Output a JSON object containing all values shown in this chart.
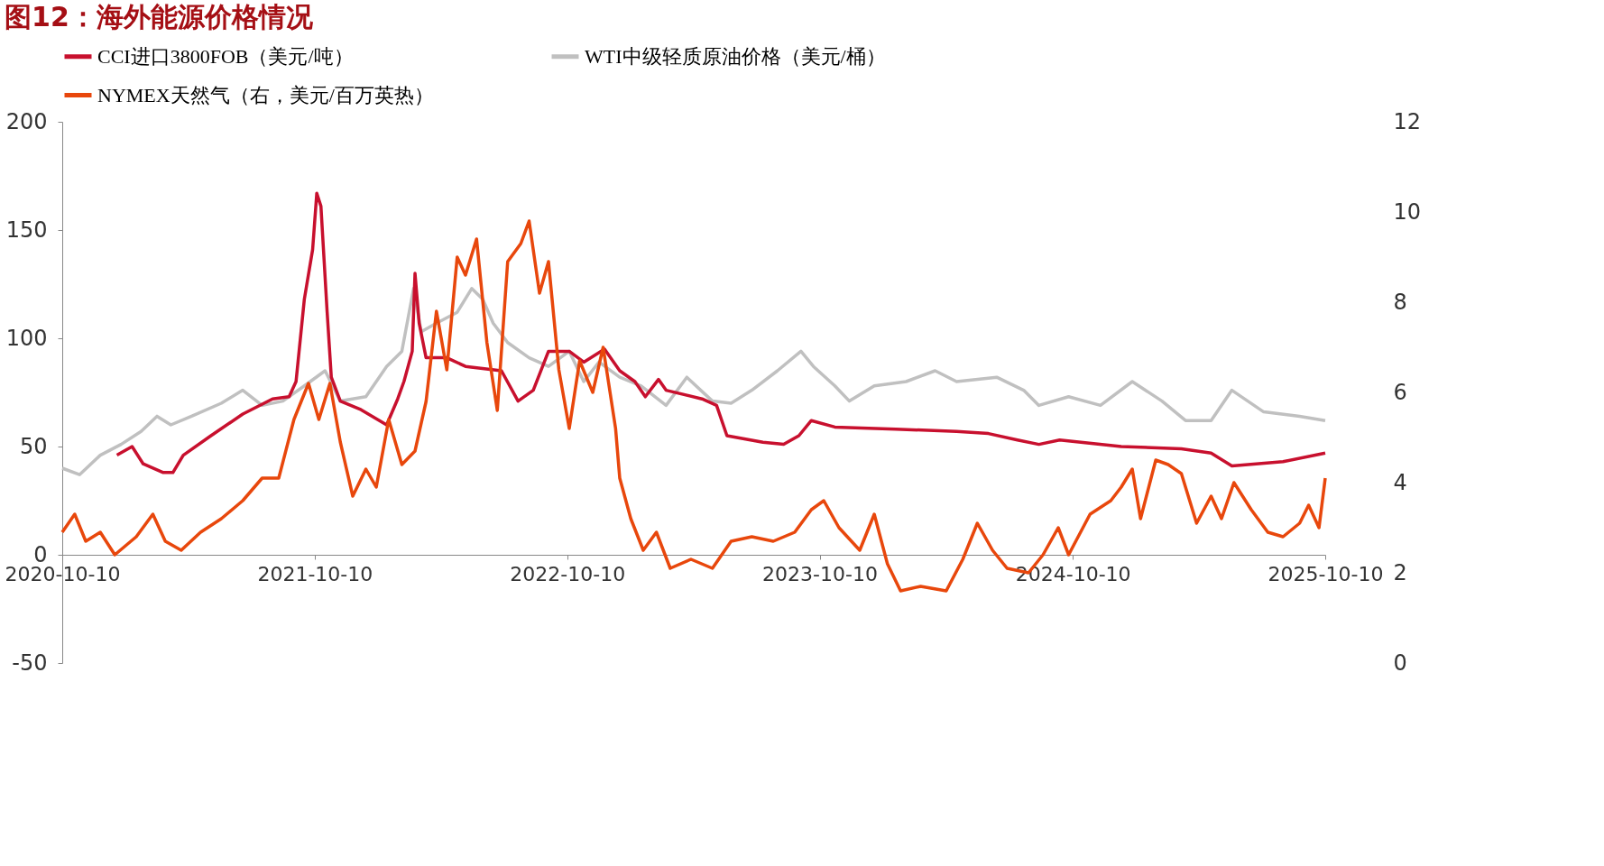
{
  "chart_data": {
    "type": "line",
    "title": "图12：海外能源价格情况",
    "legend": "top",
    "grid": false,
    "line_style": "solid",
    "marker": "none",
    "xlim": [
      "2020-10-10",
      "2025-10-10"
    ],
    "xticks": [
      "2020-10-10",
      "2021-10-10",
      "2022-10-10",
      "2023-10-10",
      "2024-10-10",
      "2025-10-10"
    ],
    "ylim": [
      -50,
      200
    ],
    "yticks": [
      -50,
      0,
      50,
      100,
      150,
      200
    ],
    "y2lim": [
      0,
      12
    ],
    "y2ticks": [
      0,
      2,
      4,
      6,
      8,
      10,
      12
    ],
    "series": [
      {
        "name": "CCI进口3800FOB（美元/吨）",
        "color": "#c8102e",
        "x": [
          "2020-12-28",
          "2021-01-19",
          "2021-02-04",
          "2021-03-05",
          "2021-03-19",
          "2021-04-03",
          "2021-05-13",
          "2021-06-28",
          "2021-08-10",
          "2021-09-03",
          "2021-09-13",
          "2021-09-25",
          "2021-10-07",
          "2021-10-13",
          "2021-10-19",
          "2021-10-28",
          "2021-11-03",
          "2021-11-16",
          "2021-12-16",
          "2022-01-22",
          "2022-02-07",
          "2022-02-16",
          "2022-02-28",
          "2022-03-04",
          "2022-03-10",
          "2022-03-20",
          "2022-04-19",
          "2022-05-16",
          "2022-07-07",
          "2022-07-31",
          "2022-08-22",
          "2022-09-13",
          "2022-10-13",
          "2022-11-03",
          "2022-12-03",
          "2022-12-25",
          "2023-01-16",
          "2023-01-31",
          "2023-02-19",
          "2023-03-02",
          "2023-04-23",
          "2023-05-14",
          "2023-05-29",
          "2023-07-20",
          "2023-08-19",
          "2023-09-10",
          "2023-09-28",
          "2023-11-01",
          "2024-01-28",
          "2024-04-25",
          "2024-06-10",
          "2024-07-22",
          "2024-08-22",
          "2024-09-21",
          "2024-12-19",
          "2025-03-16",
          "2025-04-28",
          "2025-05-28",
          "2025-08-10",
          "2025-10-10"
        ],
        "values": [
          46,
          50,
          42,
          38,
          38,
          46,
          55,
          65,
          72,
          73,
          80,
          118,
          141,
          167,
          161,
          112,
          82,
          71,
          67,
          60,
          72,
          80,
          94,
          130,
          107,
          91,
          91,
          87,
          85,
          71,
          76,
          94,
          94,
          89,
          95,
          85,
          80,
          73,
          81,
          76,
          72,
          69,
          55,
          52,
          51,
          55,
          62,
          59,
          58,
          57,
          56,
          53,
          51,
          53,
          50,
          49,
          47,
          41,
          43,
          47
        ]
      },
      {
        "name": "WTI中级轻质原油价格（美元/桶）",
        "color": "#c0c0c0",
        "x": [
          "2020-10-10",
          "2020-11-04",
          "2020-12-04",
          "2021-01-03",
          "2021-02-01",
          "2021-02-24",
          "2021-03-16",
          "2021-04-15",
          "2021-05-28",
          "2021-06-28",
          "2021-07-26",
          "2021-08-25",
          "2021-09-25",
          "2021-10-25",
          "2021-11-16",
          "2021-12-23",
          "2022-01-22",
          "2022-02-13",
          "2022-03-02",
          "2022-03-13",
          "2022-04-04",
          "2022-05-04",
          "2022-05-25",
          "2022-06-10",
          "2022-06-25",
          "2022-07-16",
          "2022-08-16",
          "2022-09-13",
          "2022-10-13",
          "2022-11-03",
          "2022-11-25",
          "2022-12-25",
          "2023-01-25",
          "2023-03-02",
          "2023-04-01",
          "2023-05-08",
          "2023-06-04",
          "2023-07-04",
          "2023-08-10",
          "2023-09-13",
          "2023-10-01",
          "2023-11-01",
          "2023-11-22",
          "2023-12-28",
          "2024-02-12",
          "2024-03-25",
          "2024-04-25",
          "2024-06-22",
          "2024-07-31",
          "2024-08-22",
          "2024-10-04",
          "2024-11-19",
          "2025-01-04",
          "2025-02-16",
          "2025-03-22",
          "2025-04-28",
          "2025-05-28",
          "2025-07-13",
          "2025-09-03",
          "2025-10-10"
        ],
        "values": [
          40,
          37,
          46,
          51,
          57,
          64,
          60,
          64,
          70,
          76,
          69,
          71,
          78,
          85,
          71,
          73,
          87,
          94,
          123,
          103,
          107,
          112,
          123,
          118,
          107,
          98,
          91,
          87,
          94,
          80,
          89,
          82,
          78,
          69,
          82,
          71,
          70,
          76,
          85,
          94,
          87,
          78,
          71,
          78,
          80,
          85,
          80,
          82,
          76,
          69,
          73,
          69,
          80,
          71,
          62,
          62,
          76,
          66,
          64,
          62
        ]
      },
      {
        "name": "NYMEX天然气（右，美元/百万英热）",
        "color": "#e8470c",
        "axis": "y2",
        "x": [
          "2020-10-10",
          "2020-10-28",
          "2020-11-13",
          "2020-12-04",
          "2020-12-25",
          "2021-01-25",
          "2021-02-18",
          "2021-03-08",
          "2021-03-31",
          "2021-04-28",
          "2021-05-28",
          "2021-06-28",
          "2021-07-26",
          "2021-08-19",
          "2021-09-10",
          "2021-10-01",
          "2021-10-16",
          "2021-11-01",
          "2021-11-16",
          "2021-12-04",
          "2021-12-23",
          "2022-01-07",
          "2022-01-25",
          "2022-02-13",
          "2022-03-04",
          "2022-03-20",
          "2022-04-04",
          "2022-04-19",
          "2022-05-04",
          "2022-05-16",
          "2022-06-01",
          "2022-06-16",
          "2022-07-01",
          "2022-07-16",
          "2022-08-04",
          "2022-08-16",
          "2022-08-31",
          "2022-09-13",
          "2022-09-28",
          "2022-10-13",
          "2022-10-28",
          "2022-11-16",
          "2022-12-01",
          "2022-12-19",
          "2022-12-25",
          "2023-01-10",
          "2023-01-28",
          "2023-02-16",
          "2023-03-08",
          "2023-04-07",
          "2023-05-08",
          "2023-06-04",
          "2023-07-04",
          "2023-08-04",
          "2023-09-04",
          "2023-09-28",
          "2023-10-16",
          "2023-11-07",
          "2023-12-07",
          "2023-12-28",
          "2024-01-16",
          "2024-02-04",
          "2024-03-04",
          "2024-04-10",
          "2024-05-04",
          "2024-05-25",
          "2024-06-16",
          "2024-07-07",
          "2024-08-07",
          "2024-08-28",
          "2024-09-19",
          "2024-10-04",
          "2024-11-04",
          "2024-12-04",
          "2024-12-19",
          "2025-01-04",
          "2025-01-16",
          "2025-02-07",
          "2025-02-25",
          "2025-03-16",
          "2025-04-07",
          "2025-04-28",
          "2025-05-13",
          "2025-05-31",
          "2025-06-25",
          "2025-07-19",
          "2025-08-10",
          "2025-09-03",
          "2025-09-16",
          "2025-10-01",
          "2025-10-10"
        ],
        "values": [
          2.9,
          3.3,
          2.7,
          2.9,
          2.4,
          2.8,
          3.3,
          2.7,
          2.5,
          2.9,
          3.2,
          3.6,
          4.1,
          4.1,
          5.4,
          6.2,
          5.4,
          6.2,
          4.9,
          3.7,
          4.3,
          3.9,
          5.4,
          4.4,
          4.7,
          5.8,
          7.8,
          6.5,
          9.0,
          8.6,
          9.4,
          7.1,
          5.6,
          8.9,
          9.3,
          9.8,
          8.2,
          8.9,
          6.5,
          5.2,
          6.7,
          6.0,
          7.0,
          5.2,
          4.1,
          3.2,
          2.5,
          2.9,
          2.1,
          2.3,
          2.1,
          2.7,
          2.8,
          2.7,
          2.9,
          3.4,
          3.6,
          3.0,
          2.5,
          3.3,
          2.2,
          1.6,
          1.7,
          1.6,
          2.3,
          3.1,
          2.5,
          2.1,
          2.0,
          2.4,
          3.0,
          2.4,
          3.3,
          3.6,
          3.9,
          4.3,
          3.2,
          4.5,
          4.4,
          4.2,
          3.1,
          3.7,
          3.2,
          4.0,
          3.4,
          2.9,
          2.8,
          3.1,
          3.5,
          3.0,
          4.1
        ]
      }
    ]
  }
}
